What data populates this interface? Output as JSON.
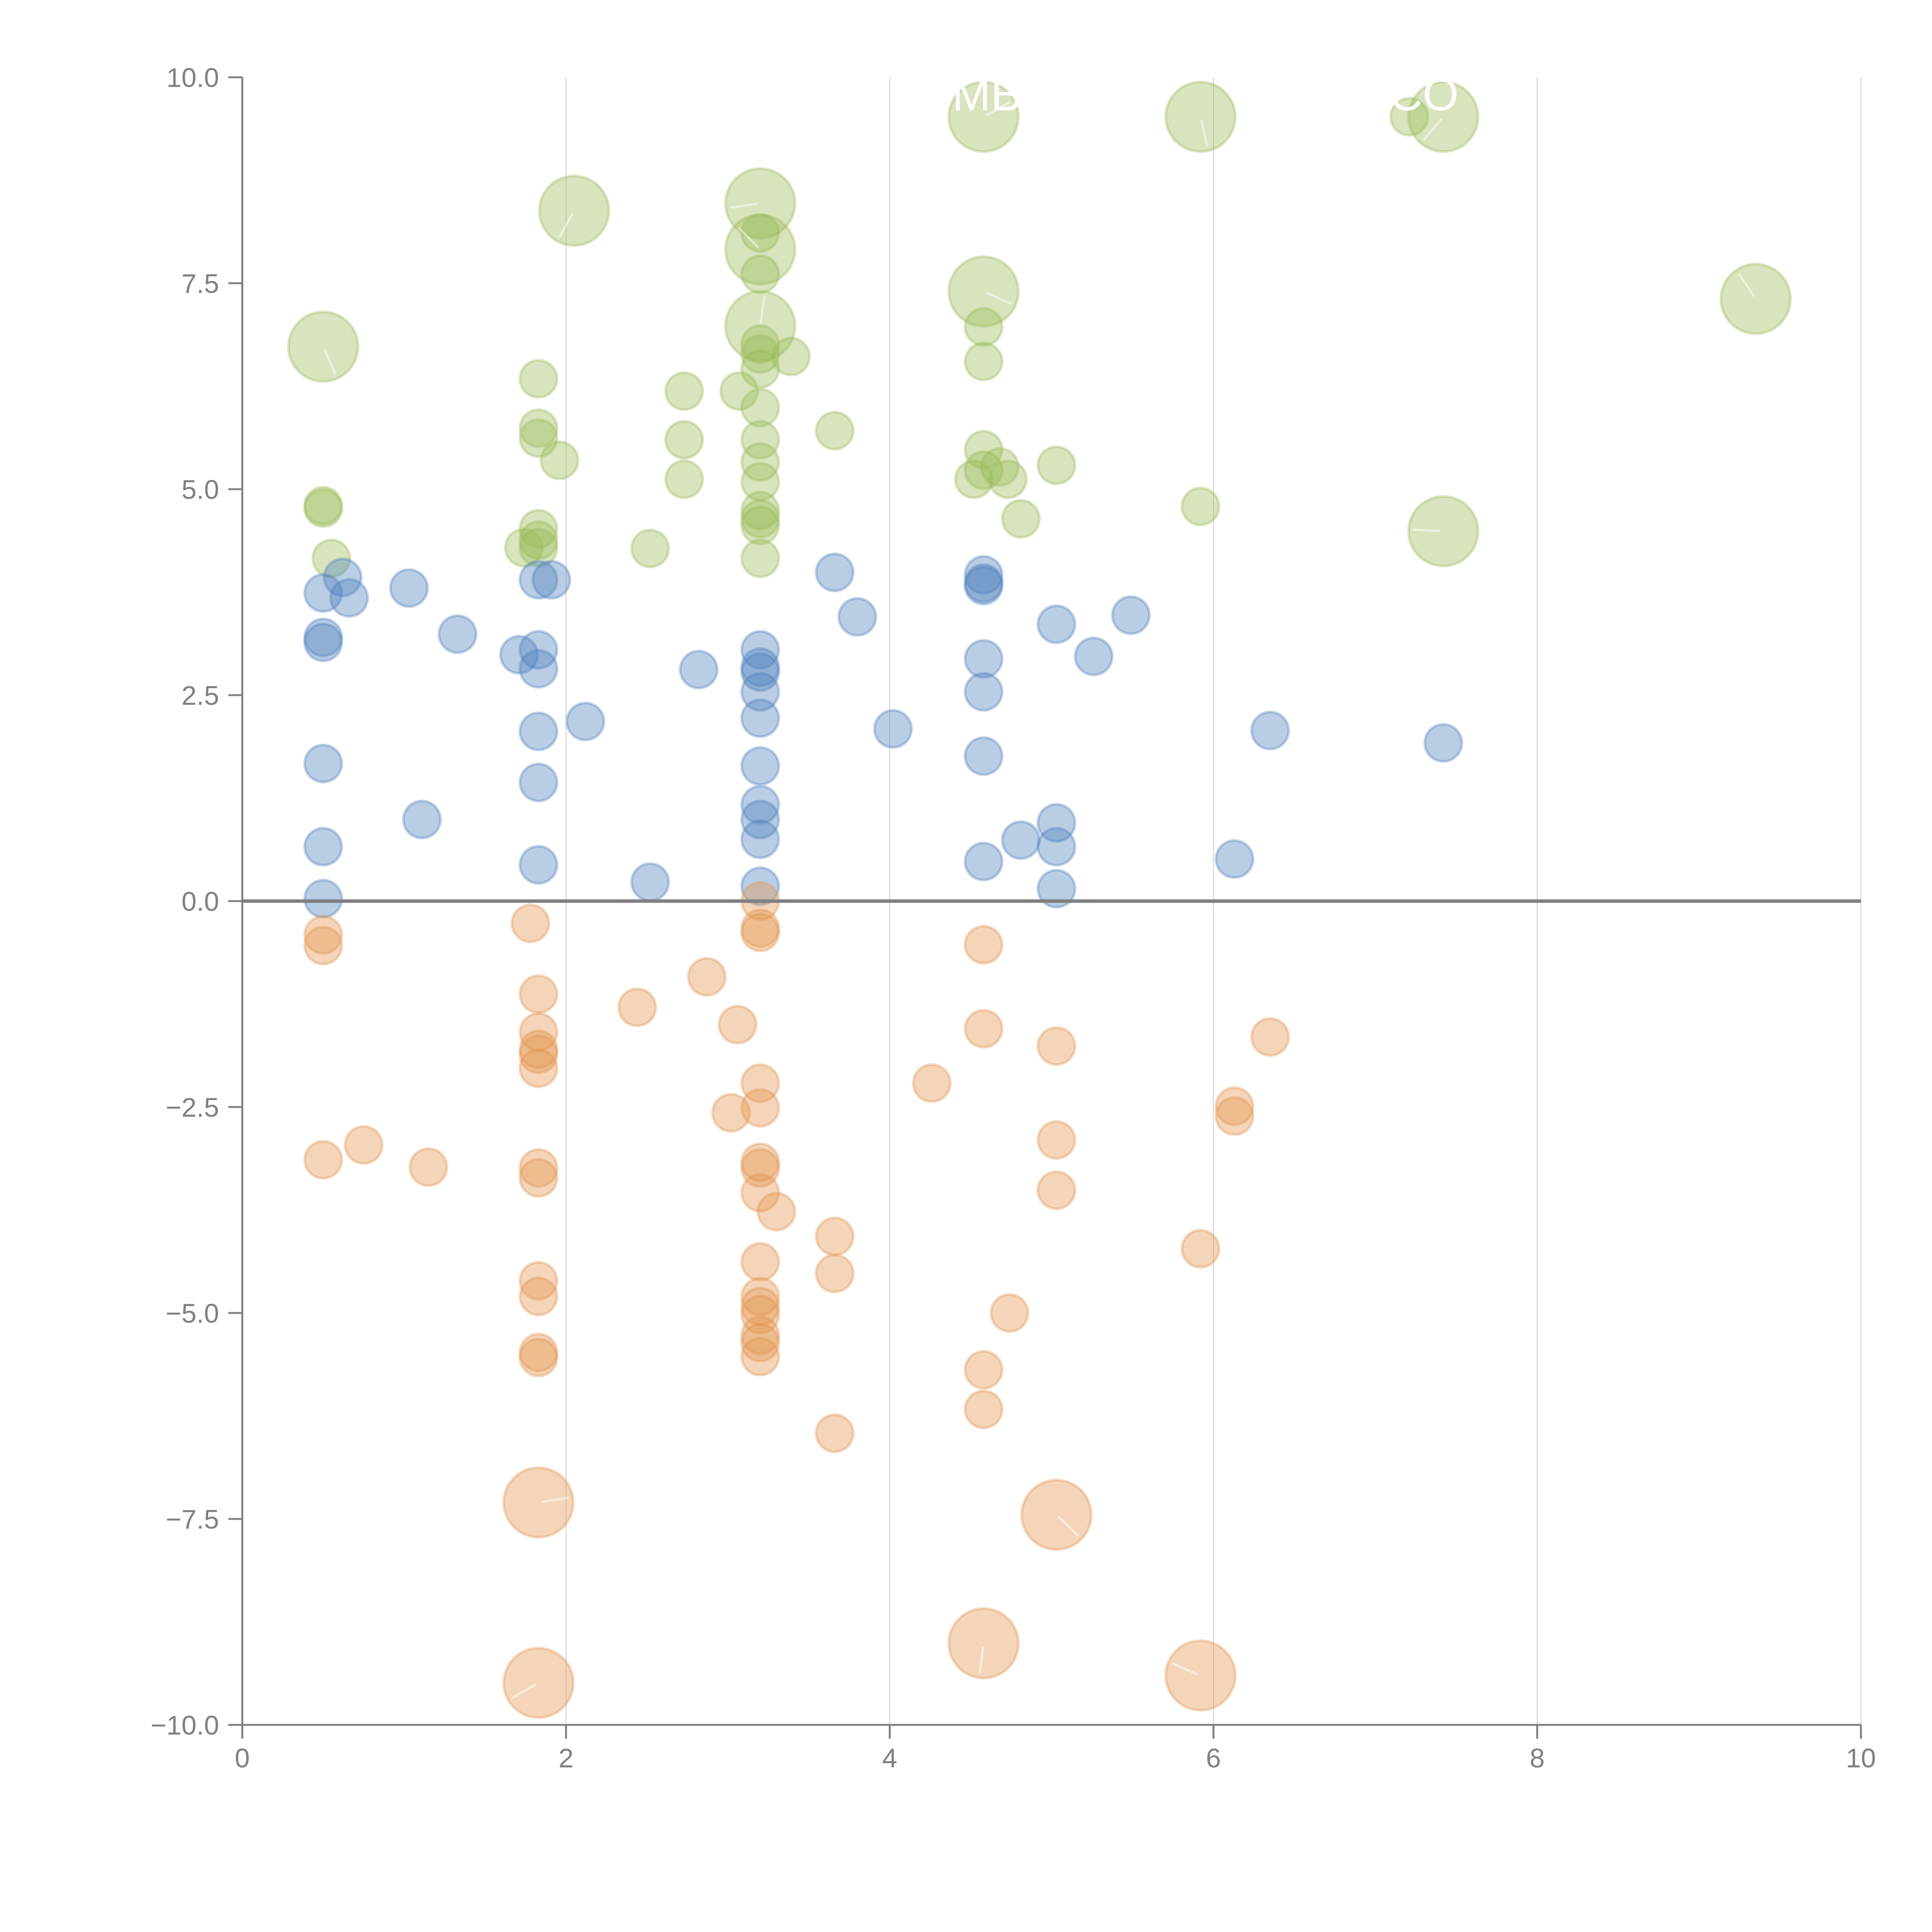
{
  "chart_data": {
    "type": "scatter",
    "title": "",
    "xlabel": "",
    "ylabel": "",
    "xlim": [
      0,
      10
    ],
    "ylim": [
      -10,
      10
    ],
    "grid": "vertical",
    "legend": "none",
    "x_ticks": [
      "0",
      "2",
      "4",
      "6",
      "8",
      "10"
    ],
    "x_tick_values": [
      0,
      2,
      4,
      6,
      8,
      10
    ],
    "y_ticks": [
      "10.0",
      "7.5",
      "5.0",
      "2.5",
      "0.0",
      "−2.5",
      "−5.0",
      "−7.5",
      "−10.0"
    ],
    "y_tick_values": [
      10,
      7.5,
      5,
      2.5,
      0,
      -2.5,
      -5,
      -7.5,
      -10
    ],
    "reference_line_y": 0,
    "overlay_labels": [
      {
        "text": "MB",
        "x": 4.6,
        "y": 9.6
      },
      {
        "text": "CO",
        "x": 7.3,
        "y": 9.6
      }
    ],
    "series": [
      {
        "name": "green",
        "fill": "#9bbb59",
        "stroke": "#9bbb59",
        "points": [
          {
            "x": 0.5,
            "y": 4.77,
            "size": "small"
          },
          {
            "x": 0.5,
            "y": 4.8,
            "size": "small"
          },
          {
            "x": 0.55,
            "y": 4.16,
            "size": "small"
          },
          {
            "x": 1.83,
            "y": 6.34,
            "size": "small"
          },
          {
            "x": 1.83,
            "y": 5.74,
            "size": "small"
          },
          {
            "x": 1.83,
            "y": 5.62,
            "size": "small"
          },
          {
            "x": 1.96,
            "y": 5.35,
            "size": "small"
          },
          {
            "x": 1.83,
            "y": 4.52,
            "size": "small"
          },
          {
            "x": 1.74,
            "y": 4.29,
            "size": "small"
          },
          {
            "x": 1.83,
            "y": 4.29,
            "size": "small"
          },
          {
            "x": 1.83,
            "y": 4.38,
            "size": "small"
          },
          {
            "x": 2.73,
            "y": 6.19,
            "size": "small"
          },
          {
            "x": 2.73,
            "y": 5.6,
            "size": "small"
          },
          {
            "x": 2.73,
            "y": 5.12,
            "size": "small"
          },
          {
            "x": 2.52,
            "y": 4.28,
            "size": "small"
          },
          {
            "x": 3.07,
            "y": 6.19,
            "size": "small"
          },
          {
            "x": 3.2,
            "y": 8.11,
            "size": "small"
          },
          {
            "x": 3.2,
            "y": 7.61,
            "size": "small"
          },
          {
            "x": 3.2,
            "y": 6.76,
            "size": "small"
          },
          {
            "x": 3.2,
            "y": 6.64,
            "size": "small"
          },
          {
            "x": 3.39,
            "y": 6.61,
            "size": "small"
          },
          {
            "x": 3.2,
            "y": 6.46,
            "size": "small"
          },
          {
            "x": 3.2,
            "y": 5.99,
            "size": "small"
          },
          {
            "x": 3.2,
            "y": 5.6,
            "size": "small"
          },
          {
            "x": 3.2,
            "y": 5.33,
            "size": "small"
          },
          {
            "x": 3.2,
            "y": 5.09,
            "size": "small"
          },
          {
            "x": 3.2,
            "y": 4.74,
            "size": "small"
          },
          {
            "x": 3.2,
            "y": 4.64,
            "size": "small"
          },
          {
            "x": 3.2,
            "y": 4.56,
            "size": "small"
          },
          {
            "x": 3.2,
            "y": 4.16,
            "size": "small"
          },
          {
            "x": 3.66,
            "y": 5.71,
            "size": "small"
          },
          {
            "x": 4.58,
            "y": 6.97,
            "size": "small"
          },
          {
            "x": 4.58,
            "y": 6.55,
            "size": "small"
          },
          {
            "x": 4.58,
            "y": 5.48,
            "size": "small"
          },
          {
            "x": 4.58,
            "y": 5.23,
            "size": "small"
          },
          {
            "x": 4.52,
            "y": 5.12,
            "size": "small"
          },
          {
            "x": 4.68,
            "y": 5.27,
            "size": "small"
          },
          {
            "x": 4.73,
            "y": 5.12,
            "size": "small"
          },
          {
            "x": 4.81,
            "y": 4.64,
            "size": "small"
          },
          {
            "x": 5.03,
            "y": 5.29,
            "size": "small"
          },
          {
            "x": 5.92,
            "y": 4.79,
            "size": "small"
          },
          {
            "x": 7.21,
            "y": 9.52,
            "size": "small"
          },
          {
            "x": 0.5,
            "y": 6.73,
            "size": "large"
          },
          {
            "x": 2.05,
            "y": 8.38,
            "size": "large"
          },
          {
            "x": 3.2,
            "y": 8.47,
            "size": "large"
          },
          {
            "x": 3.2,
            "y": 7.91,
            "size": "large"
          },
          {
            "x": 3.2,
            "y": 6.98,
            "size": "large"
          },
          {
            "x": 4.58,
            "y": 9.52,
            "size": "large"
          },
          {
            "x": 4.58,
            "y": 7.4,
            "size": "large"
          },
          {
            "x": 5.92,
            "y": 9.52,
            "size": "large"
          },
          {
            "x": 7.42,
            "y": 9.52,
            "size": "large"
          },
          {
            "x": 7.42,
            "y": 4.49,
            "size": "large"
          },
          {
            "x": 9.35,
            "y": 7.31,
            "size": "large"
          }
        ]
      },
      {
        "name": "blue",
        "fill": "#4f81bd",
        "stroke": "#4f81bd",
        "points": [
          {
            "x": 0.5,
            "y": 3.74,
            "size": "small"
          },
          {
            "x": 0.5,
            "y": 3.2,
            "size": "small"
          },
          {
            "x": 0.5,
            "y": 3.14,
            "size": "small"
          },
          {
            "x": 0.62,
            "y": 3.93,
            "size": "small"
          },
          {
            "x": 0.66,
            "y": 3.68,
            "size": "small"
          },
          {
            "x": 0.5,
            "y": 1.67,
            "size": "small"
          },
          {
            "x": 0.5,
            "y": 0.66,
            "size": "small"
          },
          {
            "x": 0.5,
            "y": 0.03,
            "size": "small"
          },
          {
            "x": 1.03,
            "y": 3.8,
            "size": "small"
          },
          {
            "x": 1.11,
            "y": 0.99,
            "size": "small"
          },
          {
            "x": 1.33,
            "y": 3.24,
            "size": "small"
          },
          {
            "x": 1.71,
            "y": 2.99,
            "size": "small"
          },
          {
            "x": 1.83,
            "y": 3.05,
            "size": "small"
          },
          {
            "x": 1.83,
            "y": 2.82,
            "size": "small"
          },
          {
            "x": 1.83,
            "y": 3.9,
            "size": "small"
          },
          {
            "x": 1.91,
            "y": 3.9,
            "size": "small"
          },
          {
            "x": 1.83,
            "y": 2.06,
            "size": "small"
          },
          {
            "x": 2.12,
            "y": 2.18,
            "size": "small"
          },
          {
            "x": 1.83,
            "y": 1.44,
            "size": "small"
          },
          {
            "x": 1.83,
            "y": 0.44,
            "size": "small"
          },
          {
            "x": 2.52,
            "y": 0.23,
            "size": "small"
          },
          {
            "x": 2.82,
            "y": 2.81,
            "size": "small"
          },
          {
            "x": 3.2,
            "y": 3.05,
            "size": "small"
          },
          {
            "x": 3.2,
            "y": 2.84,
            "size": "small"
          },
          {
            "x": 3.2,
            "y": 2.78,
            "size": "small"
          },
          {
            "x": 3.2,
            "y": 2.54,
            "size": "small"
          },
          {
            "x": 3.2,
            "y": 2.22,
            "size": "small"
          },
          {
            "x": 3.2,
            "y": 1.64,
            "size": "small"
          },
          {
            "x": 3.2,
            "y": 1.17,
            "size": "small"
          },
          {
            "x": 3.2,
            "y": 0.99,
            "size": "small"
          },
          {
            "x": 3.2,
            "y": 0.75,
            "size": "small"
          },
          {
            "x": 3.2,
            "y": 0.18,
            "size": "small"
          },
          {
            "x": 3.66,
            "y": 3.99,
            "size": "small"
          },
          {
            "x": 3.8,
            "y": 3.45,
            "size": "small"
          },
          {
            "x": 4.02,
            "y": 2.09,
            "size": "small"
          },
          {
            "x": 4.58,
            "y": 3.96,
            "size": "small"
          },
          {
            "x": 4.58,
            "y": 3.86,
            "size": "small"
          },
          {
            "x": 4.58,
            "y": 3.83,
            "size": "small"
          },
          {
            "x": 4.58,
            "y": 2.94,
            "size": "small"
          },
          {
            "x": 4.58,
            "y": 2.54,
            "size": "small"
          },
          {
            "x": 4.58,
            "y": 1.76,
            "size": "small"
          },
          {
            "x": 4.58,
            "y": 0.48,
            "size": "small"
          },
          {
            "x": 4.81,
            "y": 0.74,
            "size": "small"
          },
          {
            "x": 5.03,
            "y": 3.36,
            "size": "small"
          },
          {
            "x": 5.26,
            "y": 2.97,
            "size": "small"
          },
          {
            "x": 5.03,
            "y": 0.95,
            "size": "small"
          },
          {
            "x": 5.03,
            "y": 0.66,
            "size": "small"
          },
          {
            "x": 5.03,
            "y": 0.15,
            "size": "small"
          },
          {
            "x": 5.49,
            "y": 3.47,
            "size": "small"
          },
          {
            "x": 6.13,
            "y": 0.51,
            "size": "small"
          },
          {
            "x": 6.35,
            "y": 2.07,
            "size": "small"
          },
          {
            "x": 7.42,
            "y": 1.92,
            "size": "small"
          }
        ]
      },
      {
        "name": "orange",
        "fill": "#e3964f",
        "stroke": "#e3964f",
        "points": [
          {
            "x": 0.5,
            "y": -0.41,
            "size": "small"
          },
          {
            "x": 0.5,
            "y": -0.54,
            "size": "small"
          },
          {
            "x": 0.5,
            "y": -3.14,
            "size": "small"
          },
          {
            "x": 0.75,
            "y": -2.96,
            "size": "small"
          },
          {
            "x": 1.15,
            "y": -3.23,
            "size": "small"
          },
          {
            "x": 1.78,
            "y": -0.27,
            "size": "small"
          },
          {
            "x": 1.83,
            "y": -1.13,
            "size": "small"
          },
          {
            "x": 1.83,
            "y": -1.59,
            "size": "small"
          },
          {
            "x": 1.83,
            "y": -1.8,
            "size": "small"
          },
          {
            "x": 1.83,
            "y": -1.86,
            "size": "small"
          },
          {
            "x": 1.83,
            "y": -2.03,
            "size": "small"
          },
          {
            "x": 1.83,
            "y": -3.24,
            "size": "small"
          },
          {
            "x": 1.83,
            "y": -3.36,
            "size": "small"
          },
          {
            "x": 1.83,
            "y": -4.61,
            "size": "small"
          },
          {
            "x": 1.83,
            "y": -4.8,
            "size": "small"
          },
          {
            "x": 1.83,
            "y": -5.48,
            "size": "small"
          },
          {
            "x": 1.83,
            "y": -5.54,
            "size": "small"
          },
          {
            "x": 2.44,
            "y": -1.29,
            "size": "small"
          },
          {
            "x": 2.87,
            "y": -0.92,
            "size": "small"
          },
          {
            "x": 3.06,
            "y": -1.5,
            "size": "small"
          },
          {
            "x": 3.02,
            "y": -2.57,
            "size": "small"
          },
          {
            "x": 3.2,
            "y": 0.0,
            "size": "small"
          },
          {
            "x": 3.2,
            "y": -0.33,
            "size": "small"
          },
          {
            "x": 3.2,
            "y": -0.38,
            "size": "small"
          },
          {
            "x": 3.2,
            "y": -2.21,
            "size": "small"
          },
          {
            "x": 3.2,
            "y": -2.51,
            "size": "small"
          },
          {
            "x": 3.2,
            "y": -3.17,
            "size": "small"
          },
          {
            "x": 3.2,
            "y": -3.24,
            "size": "small"
          },
          {
            "x": 3.2,
            "y": -3.54,
            "size": "small"
          },
          {
            "x": 3.3,
            "y": -3.77,
            "size": "small"
          },
          {
            "x": 3.2,
            "y": -4.38,
            "size": "small"
          },
          {
            "x": 3.2,
            "y": -4.8,
            "size": "small"
          },
          {
            "x": 3.2,
            "y": -4.92,
            "size": "small"
          },
          {
            "x": 3.2,
            "y": -5.02,
            "size": "small"
          },
          {
            "x": 3.2,
            "y": -5.27,
            "size": "small"
          },
          {
            "x": 3.2,
            "y": -5.36,
            "size": "small"
          },
          {
            "x": 3.2,
            "y": -5.53,
            "size": "small"
          },
          {
            "x": 3.66,
            "y": -4.07,
            "size": "small"
          },
          {
            "x": 3.66,
            "y": -4.52,
            "size": "small"
          },
          {
            "x": 3.66,
            "y": -6.46,
            "size": "small"
          },
          {
            "x": 4.26,
            "y": -2.21,
            "size": "small"
          },
          {
            "x": 4.58,
            "y": -0.53,
            "size": "small"
          },
          {
            "x": 4.58,
            "y": -1.55,
            "size": "small"
          },
          {
            "x": 4.58,
            "y": -5.69,
            "size": "small"
          },
          {
            "x": 4.58,
            "y": -6.17,
            "size": "small"
          },
          {
            "x": 4.74,
            "y": -5.0,
            "size": "small"
          },
          {
            "x": 5.03,
            "y": -1.76,
            "size": "small"
          },
          {
            "x": 5.03,
            "y": -2.9,
            "size": "small"
          },
          {
            "x": 5.03,
            "y": -3.51,
            "size": "small"
          },
          {
            "x": 5.92,
            "y": -4.22,
            "size": "small"
          },
          {
            "x": 6.13,
            "y": -2.49,
            "size": "small"
          },
          {
            "x": 6.13,
            "y": -2.61,
            "size": "small"
          },
          {
            "x": 6.35,
            "y": -1.65,
            "size": "small"
          },
          {
            "x": 1.83,
            "y": -7.3,
            "size": "large"
          },
          {
            "x": 5.03,
            "y": -7.45,
            "size": "large"
          },
          {
            "x": 4.58,
            "y": -9.01,
            "size": "large"
          },
          {
            "x": 1.83,
            "y": -9.49,
            "size": "large"
          },
          {
            "x": 5.92,
            "y": -9.4,
            "size": "large"
          }
        ]
      }
    ]
  }
}
